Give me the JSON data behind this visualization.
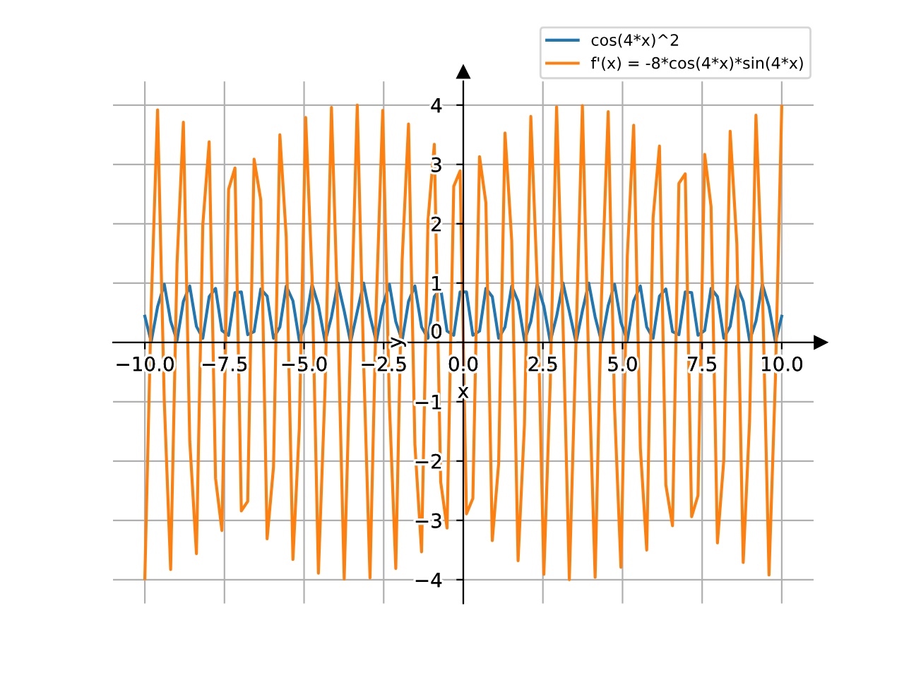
{
  "chart_data": {
    "type": "line",
    "xlabel": "x",
    "ylabel": "y",
    "x": [
      -10,
      -9.8,
      -9.6,
      -9.39,
      -9.19,
      -8.99,
      -8.79,
      -8.59,
      -8.38,
      -8.18,
      -7.98,
      -7.78,
      -7.58,
      -7.37,
      -7.17,
      -6.97,
      -6.77,
      -6.57,
      -6.36,
      -6.16,
      -5.96,
      -5.76,
      -5.56,
      -5.35,
      -5.15,
      -4.95,
      -4.75,
      -4.55,
      -4.34,
      -4.14,
      -3.94,
      -3.74,
      -3.54,
      -3.33,
      -3.13,
      -2.93,
      -2.73,
      -2.53,
      -2.32,
      -2.12,
      -1.92,
      -1.72,
      -1.52,
      -1.31,
      -1.11,
      -0.91,
      -0.71,
      -0.51,
      -0.3,
      -0.1,
      0.1,
      0.3,
      0.51,
      0.71,
      0.91,
      1.11,
      1.31,
      1.52,
      1.72,
      1.92,
      2.12,
      2.32,
      2.53,
      2.73,
      2.93,
      3.13,
      3.33,
      3.54,
      3.74,
      3.94,
      4.14,
      4.34,
      4.55,
      4.75,
      4.95,
      5.15,
      5.35,
      5.56,
      5.76,
      5.96,
      6.16,
      6.36,
      6.57,
      6.77,
      6.97,
      7.17,
      7.37,
      7.58,
      7.78,
      7.98,
      8.18,
      8.38,
      8.59,
      8.79,
      8.99,
      9.19,
      9.39,
      9.6,
      9.8,
      10
    ],
    "series": [
      {
        "name": "cos(4*x)^2",
        "color": "#1f77b4",
        "values": [
          0.44,
          0.01,
          0.6,
          0.98,
          0.36,
          0.03,
          0.69,
          0.95,
          0.27,
          0.07,
          0.77,
          0.91,
          0.2,
          0.12,
          0.84,
          0.85,
          0.13,
          0.18,
          0.9,
          0.78,
          0.07,
          0.26,
          0.95,
          0.7,
          0.03,
          0.34,
          0.98,
          0.62,
          0.01,
          0.43,
          1.0,
          0.53,
          0.0,
          0.52,
          1.0,
          0.44,
          0.01,
          0.61,
          0.98,
          0.35,
          0.03,
          0.69,
          0.95,
          0.26,
          0.07,
          0.77,
          0.91,
          0.19,
          0.12,
          0.85,
          0.85,
          0.12,
          0.19,
          0.91,
          0.77,
          0.07,
          0.26,
          0.95,
          0.69,
          0.03,
          0.35,
          0.98,
          0.61,
          0.01,
          0.44,
          1.0,
          0.52,
          0.0,
          0.53,
          1.0,
          0.43,
          0.01,
          0.62,
          0.98,
          0.34,
          0.03,
          0.7,
          0.95,
          0.26,
          0.07,
          0.78,
          0.9,
          0.18,
          0.13,
          0.85,
          0.84,
          0.12,
          0.2,
          0.91,
          0.77,
          0.07,
          0.27,
          0.95,
          0.69,
          0.03,
          0.36,
          0.98,
          0.6,
          0.01,
          0.44
        ]
      },
      {
        "name": "f'(x) = -8*cos(4*x)*sin(4*x)",
        "color": "#ff7f0e",
        "values": [
          -3.98,
          0.62,
          3.92,
          -0.98,
          -3.83,
          1.32,
          3.71,
          -1.66,
          -3.56,
          1.98,
          3.38,
          -2.29,
          -3.17,
          2.58,
          2.94,
          -2.84,
          -2.68,
          3.09,
          2.4,
          -3.31,
          -2.1,
          3.5,
          1.78,
          -3.66,
          -1.45,
          3.79,
          1.11,
          -3.89,
          -0.76,
          3.96,
          0.4,
          -3.99,
          -0.03,
          4.0,
          -0.33,
          -3.97,
          0.69,
          3.91,
          -1.04,
          -3.81,
          1.39,
          3.68,
          -1.72,
          -3.53,
          2.04,
          3.34,
          -2.35,
          -3.13,
          2.63,
          2.89,
          -2.89,
          -2.63,
          3.13,
          2.35,
          -3.34,
          -2.04,
          3.53,
          1.72,
          -3.68,
          -1.39,
          3.81,
          1.04,
          -3.91,
          -0.69,
          3.97,
          0.33,
          -4.0,
          0.03,
          3.99,
          -0.4,
          -3.96,
          0.76,
          3.89,
          -1.11,
          -3.79,
          1.45,
          3.66,
          -1.78,
          -3.5,
          2.1,
          3.31,
          -2.4,
          -3.09,
          2.68,
          2.84,
          -2.94,
          -2.58,
          3.17,
          2.29,
          -3.38,
          -1.98,
          3.56,
          1.66,
          -3.71,
          -1.32,
          3.83,
          0.98,
          -3.92,
          -0.62,
          3.98
        ]
      }
    ],
    "xlim": [
      -11,
      11
    ],
    "ylim": [
      -4.4,
      4.4
    ],
    "xticks": [
      {
        "value": -10,
        "label": "−10.0"
      },
      {
        "value": -7.5,
        "label": "−7.5"
      },
      {
        "value": -5,
        "label": "−5.0"
      },
      {
        "value": -2.5,
        "label": "−2.5"
      },
      {
        "value": 0,
        "label": "0.0"
      },
      {
        "value": 2.5,
        "label": "2.5"
      },
      {
        "value": 5,
        "label": "5.0"
      },
      {
        "value": 7.5,
        "label": "7.5"
      },
      {
        "value": 10,
        "label": "10.0"
      }
    ],
    "yticks": [
      {
        "value": -4,
        "label": "−4"
      },
      {
        "value": -3,
        "label": "−3"
      },
      {
        "value": -2,
        "label": "−2"
      },
      {
        "value": -1,
        "label": "−1"
      },
      0,
      1,
      2,
      3,
      4
    ],
    "grid": true,
    "legend": "top right",
    "line_style": "solid"
  }
}
